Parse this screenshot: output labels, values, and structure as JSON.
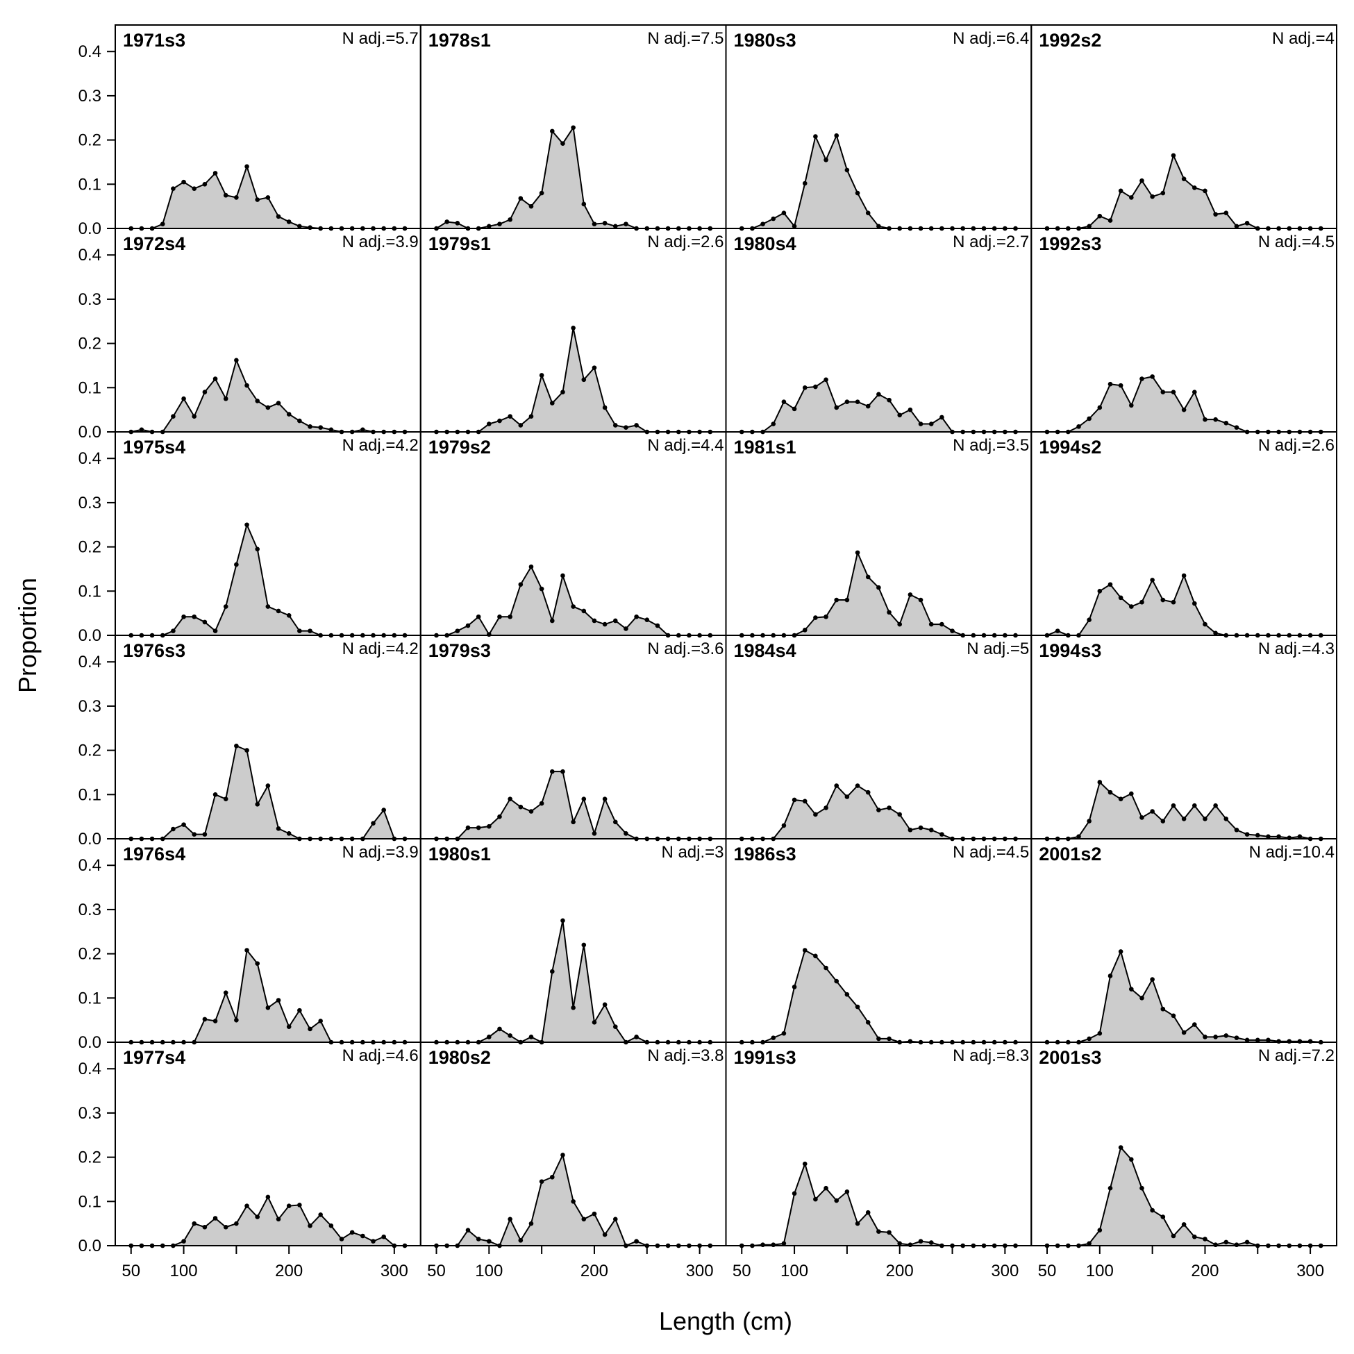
{
  "chart_data": {
    "type": "area",
    "xlabel": "Length (cm)",
    "ylabel": "Proportion",
    "xlim": [
      35,
      325
    ],
    "ylim": [
      0,
      0.46
    ],
    "xticks": [
      50,
      100,
      200,
      300
    ],
    "xtick_labels": [
      "50",
      "100",
      "200",
      "300"
    ],
    "yticks": [
      0.0,
      0.1,
      0.2,
      0.3,
      0.4
    ],
    "ytick_labels": [
      "0.0",
      "0.1",
      "0.2",
      "0.3",
      "0.4"
    ],
    "layout": {
      "rows": 6,
      "cols": 4,
      "order": "column-major"
    },
    "x": [
      50,
      60,
      70,
      80,
      90,
      100,
      110,
      120,
      130,
      140,
      150,
      160,
      170,
      180,
      190,
      200,
      210,
      220,
      230,
      240,
      250,
      260,
      270,
      280,
      290,
      300,
      310
    ],
    "panels": [
      {
        "label": "1971s3",
        "n_adj": "N adj.=5.7",
        "values": [
          0,
          0,
          0,
          0.01,
          0.09,
          0.105,
          0.09,
          0.1,
          0.125,
          0.075,
          0.07,
          0.14,
          0.065,
          0.07,
          0.027,
          0.015,
          0.005,
          0.002,
          0,
          0,
          0,
          0,
          0,
          0,
          0,
          0,
          0
        ]
      },
      {
        "label": "1972s4",
        "n_adj": "N adj.=3.9",
        "values": [
          0,
          0.005,
          0,
          0,
          0.035,
          0.075,
          0.035,
          0.09,
          0.12,
          0.075,
          0.162,
          0.105,
          0.07,
          0.055,
          0.065,
          0.04,
          0.025,
          0.012,
          0.01,
          0.005,
          0,
          0,
          0.005,
          0,
          0,
          0,
          0
        ]
      },
      {
        "label": "1975s4",
        "n_adj": "N adj.=4.2",
        "values": [
          0,
          0,
          0,
          0,
          0.01,
          0.042,
          0.042,
          0.03,
          0.01,
          0.065,
          0.16,
          0.25,
          0.195,
          0.065,
          0.055,
          0.045,
          0.01,
          0.01,
          0,
          0,
          0,
          0,
          0,
          0,
          0,
          0,
          0
        ]
      },
      {
        "label": "1976s3",
        "n_adj": "N adj.=4.2",
        "values": [
          0,
          0,
          0,
          0,
          0.022,
          0.032,
          0.01,
          0.01,
          0.1,
          0.09,
          0.21,
          0.2,
          0.078,
          0.12,
          0.023,
          0.012,
          0,
          0,
          0,
          0,
          0,
          0,
          0,
          0.035,
          0.065,
          0,
          0
        ]
      },
      {
        "label": "1976s4",
        "n_adj": "N adj.=3.9",
        "values": [
          0,
          0,
          0,
          0,
          0,
          0,
          0,
          0.052,
          0.048,
          0.112,
          0.05,
          0.208,
          0.178,
          0.078,
          0.095,
          0.035,
          0.072,
          0.03,
          0.048,
          0,
          0,
          0,
          0,
          0,
          0,
          0,
          0
        ]
      },
      {
        "label": "1977s4",
        "n_adj": "N adj.=4.6",
        "values": [
          0,
          0,
          0,
          0,
          0,
          0.01,
          0.05,
          0.042,
          0.062,
          0.042,
          0.05,
          0.09,
          0.065,
          0.11,
          0.06,
          0.09,
          0.092,
          0.045,
          0.07,
          0.045,
          0.015,
          0.03,
          0.022,
          0.01,
          0.02,
          0,
          0
        ]
      },
      {
        "label": "1978s1",
        "n_adj": "N adj.=7.5",
        "values": [
          0,
          0.015,
          0.012,
          0,
          0,
          0.005,
          0.01,
          0.02,
          0.068,
          0.05,
          0.08,
          0.22,
          0.192,
          0.228,
          0.055,
          0.01,
          0.012,
          0.005,
          0.01,
          0,
          0,
          0,
          0,
          0,
          0,
          0,
          0
        ]
      },
      {
        "label": "1979s1",
        "n_adj": "N adj.=2.6",
        "values": [
          0,
          0,
          0,
          0,
          0,
          0.018,
          0.025,
          0.035,
          0.015,
          0.035,
          0.128,
          0.065,
          0.09,
          0.235,
          0.118,
          0.145,
          0.055,
          0.015,
          0.01,
          0.015,
          0,
          0,
          0,
          0,
          0,
          0,
          0
        ]
      },
      {
        "label": "1979s2",
        "n_adj": "N adj.=4.4",
        "values": [
          0,
          0,
          0.01,
          0.022,
          0.042,
          0.002,
          0.042,
          0.042,
          0.115,
          0.155,
          0.105,
          0.033,
          0.135,
          0.065,
          0.055,
          0.033,
          0.025,
          0.033,
          0.015,
          0.042,
          0.035,
          0.022,
          0,
          0,
          0,
          0,
          0
        ]
      },
      {
        "label": "1979s3",
        "n_adj": "N adj.=3.6",
        "values": [
          0,
          0,
          0,
          0.025,
          0.025,
          0.028,
          0.05,
          0.09,
          0.072,
          0.062,
          0.08,
          0.152,
          0.152,
          0.038,
          0.09,
          0.012,
          0.09,
          0.038,
          0.012,
          0,
          0,
          0,
          0,
          0,
          0,
          0,
          0
        ]
      },
      {
        "label": "1980s1",
        "n_adj": "N adj.=3",
        "values": [
          0,
          0,
          0,
          0,
          0,
          0.012,
          0.03,
          0.015,
          0,
          0.012,
          0,
          0.16,
          0.275,
          0.078,
          0.22,
          0.045,
          0.085,
          0.035,
          0,
          0.012,
          0,
          0,
          0,
          0,
          0,
          0,
          0
        ]
      },
      {
        "label": "1980s2",
        "n_adj": "N adj.=3.8",
        "values": [
          0,
          0,
          0,
          0.035,
          0.015,
          0.01,
          0,
          0.06,
          0.012,
          0.05,
          0.145,
          0.155,
          0.205,
          0.1,
          0.06,
          0.072,
          0.025,
          0.06,
          0,
          0.01,
          0,
          0,
          0,
          0,
          0,
          0,
          0
        ]
      },
      {
        "label": "1980s3",
        "n_adj": "N adj.=6.4",
        "values": [
          0,
          0,
          0.01,
          0.022,
          0.035,
          0.005,
          0.102,
          0.208,
          0.155,
          0.21,
          0.132,
          0.08,
          0.035,
          0.005,
          0,
          0,
          0,
          0,
          0,
          0,
          0,
          0,
          0,
          0,
          0,
          0,
          0
        ]
      },
      {
        "label": "1980s4",
        "n_adj": "N adj.=2.7",
        "values": [
          0,
          0,
          0,
          0.018,
          0.068,
          0.052,
          0.1,
          0.102,
          0.118,
          0.055,
          0.068,
          0.068,
          0.058,
          0.085,
          0.072,
          0.038,
          0.05,
          0.018,
          0.018,
          0.033,
          0,
          0,
          0,
          0,
          0,
          0,
          0
        ]
      },
      {
        "label": "1981s1",
        "n_adj": "N adj.=3.5",
        "values": [
          0,
          0,
          0,
          0,
          0,
          0,
          0.012,
          0.04,
          0.042,
          0.08,
          0.08,
          0.187,
          0.132,
          0.108,
          0.052,
          0.025,
          0.092,
          0.08,
          0.025,
          0.025,
          0.01,
          0,
          0,
          0,
          0,
          0,
          0
        ]
      },
      {
        "label": "1984s4",
        "n_adj": "N adj.=5",
        "values": [
          0,
          0,
          0,
          0,
          0.03,
          0.088,
          0.085,
          0.055,
          0.07,
          0.12,
          0.095,
          0.12,
          0.105,
          0.065,
          0.07,
          0.055,
          0.02,
          0.025,
          0.02,
          0.01,
          0,
          0,
          0,
          0,
          0,
          0,
          0
        ]
      },
      {
        "label": "1986s3",
        "n_adj": "N adj.=4.5",
        "values": [
          0,
          0,
          0,
          0.01,
          0.02,
          0.125,
          0.208,
          0.195,
          0.168,
          0.138,
          0.108,
          0.08,
          0.045,
          0.008,
          0.008,
          0,
          0.002,
          0,
          0,
          0,
          0,
          0,
          0,
          0,
          0,
          0,
          0
        ]
      },
      {
        "label": "1991s3",
        "n_adj": "N adj.=8.3",
        "values": [
          0,
          0,
          0.002,
          0.002,
          0.005,
          0.118,
          0.185,
          0.105,
          0.13,
          0.102,
          0.122,
          0.05,
          0.075,
          0.032,
          0.03,
          0.005,
          0.002,
          0.01,
          0.007,
          0,
          0,
          0,
          0,
          0,
          0,
          0,
          0
        ]
      },
      {
        "label": "1992s2",
        "n_adj": "N adj.=4",
        "values": [
          0,
          0,
          0,
          0,
          0.005,
          0.028,
          0.018,
          0.085,
          0.07,
          0.108,
          0.072,
          0.08,
          0.165,
          0.112,
          0.092,
          0.085,
          0.032,
          0.035,
          0.005,
          0.012,
          0,
          0,
          0,
          0,
          0,
          0,
          0
        ]
      },
      {
        "label": "1992s3",
        "n_adj": "N adj.=4.5",
        "values": [
          0,
          0,
          0,
          0.012,
          0.03,
          0.055,
          0.108,
          0.105,
          0.06,
          0.12,
          0.125,
          0.09,
          0.09,
          0.05,
          0.09,
          0.028,
          0.028,
          0.02,
          0.01,
          0,
          0,
          0,
          0,
          0,
          0,
          0,
          0
        ]
      },
      {
        "label": "1994s2",
        "n_adj": "N adj.=2.6",
        "values": [
          0,
          0.01,
          0,
          0,
          0.035,
          0.1,
          0.115,
          0.085,
          0.065,
          0.075,
          0.125,
          0.08,
          0.075,
          0.135,
          0.072,
          0.025,
          0.005,
          0,
          0,
          0,
          0,
          0,
          0,
          0,
          0,
          0,
          0
        ]
      },
      {
        "label": "1994s3",
        "n_adj": "N adj.=4.3",
        "values": [
          0,
          0,
          0,
          0.005,
          0.04,
          0.128,
          0.105,
          0.09,
          0.102,
          0.048,
          0.062,
          0.04,
          0.075,
          0.045,
          0.075,
          0.045,
          0.075,
          0.045,
          0.02,
          0.01,
          0.008,
          0.005,
          0.005,
          0.002,
          0.005,
          0,
          0
        ]
      },
      {
        "label": "2001s2",
        "n_adj": "N adj.=10.4",
        "values": [
          0,
          0,
          0,
          0,
          0.008,
          0.02,
          0.15,
          0.205,
          0.12,
          0.1,
          0.142,
          0.075,
          0.06,
          0.022,
          0.04,
          0.012,
          0.012,
          0.015,
          0.01,
          0.005,
          0.005,
          0.005,
          0.002,
          0.002,
          0.002,
          0.002,
          0
        ]
      },
      {
        "label": "2001s3",
        "n_adj": "N adj.=7.2",
        "values": [
          0,
          0,
          0,
          0,
          0.005,
          0.035,
          0.13,
          0.222,
          0.195,
          0.13,
          0.08,
          0.065,
          0.022,
          0.048,
          0.02,
          0.015,
          0.002,
          0.008,
          0.002,
          0.008,
          0,
          0,
          0,
          0,
          0,
          0,
          0
        ]
      }
    ]
  }
}
